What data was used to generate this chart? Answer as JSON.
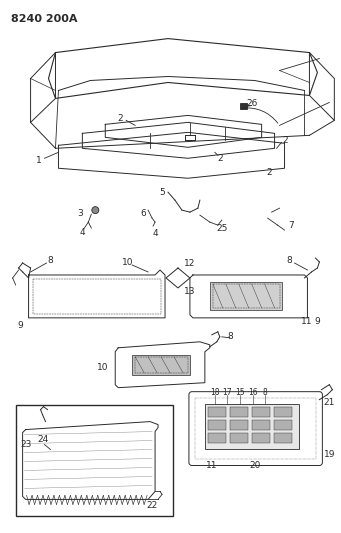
{
  "title": "8240 200A",
  "bg": "#ffffff",
  "lc": "#2a2a2a",
  "figsize": [
    3.41,
    5.33
  ],
  "dpi": 100
}
